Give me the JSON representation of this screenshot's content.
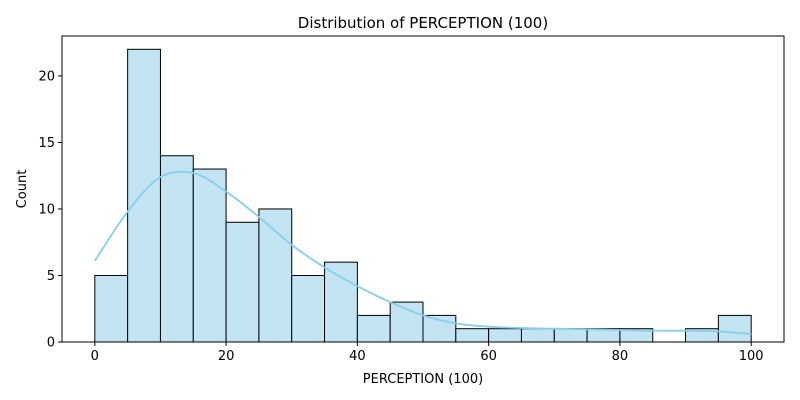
{
  "chart_data": {
    "type": "bar",
    "title": "Distribution of PERCEPTION (100)",
    "xlabel": "PERCEPTION (100)",
    "ylabel": "Count",
    "xlim": [
      -5,
      105
    ],
    "ylim": [
      0,
      23
    ],
    "xticks": [
      0,
      20,
      40,
      60,
      80,
      100
    ],
    "yticks": [
      0,
      5,
      10,
      15,
      20
    ],
    "bin_width": 5,
    "bins": [
      {
        "start": 0,
        "end": 5,
        "count": 5
      },
      {
        "start": 5,
        "end": 10,
        "count": 22
      },
      {
        "start": 10,
        "end": 15,
        "count": 14
      },
      {
        "start": 15,
        "end": 20,
        "count": 13
      },
      {
        "start": 20,
        "end": 25,
        "count": 9
      },
      {
        "start": 25,
        "end": 30,
        "count": 10
      },
      {
        "start": 30,
        "end": 35,
        "count": 5
      },
      {
        "start": 35,
        "end": 40,
        "count": 6
      },
      {
        "start": 40,
        "end": 45,
        "count": 2
      },
      {
        "start": 45,
        "end": 50,
        "count": 3
      },
      {
        "start": 50,
        "end": 55,
        "count": 2
      },
      {
        "start": 55,
        "end": 60,
        "count": 1
      },
      {
        "start": 60,
        "end": 65,
        "count": 1
      },
      {
        "start": 65,
        "end": 70,
        "count": 1
      },
      {
        "start": 70,
        "end": 75,
        "count": 1
      },
      {
        "start": 75,
        "end": 80,
        "count": 1
      },
      {
        "start": 80,
        "end": 85,
        "count": 1
      },
      {
        "start": 85,
        "end": 90,
        "count": 0
      },
      {
        "start": 90,
        "end": 95,
        "count": 1
      },
      {
        "start": 95,
        "end": 100,
        "count": 2
      }
    ],
    "kde": {
      "x": [
        0,
        5,
        10,
        15,
        20,
        25,
        30,
        35,
        40,
        45,
        50,
        55,
        60,
        65,
        70,
        75,
        80,
        85,
        90,
        95,
        100
      ],
      "y": [
        6.1,
        9.8,
        12.4,
        12.7,
        11.3,
        9.4,
        7.3,
        5.6,
        4.2,
        3.0,
        2.0,
        1.4,
        1.15,
        1.05,
        1.0,
        0.95,
        0.9,
        0.85,
        0.85,
        0.8,
        0.6
      ]
    },
    "grid": false,
    "colors": {
      "bar_fill": "#c3e4f3",
      "bar_edge": "#000000",
      "kde_line": "#87ceeb"
    }
  }
}
